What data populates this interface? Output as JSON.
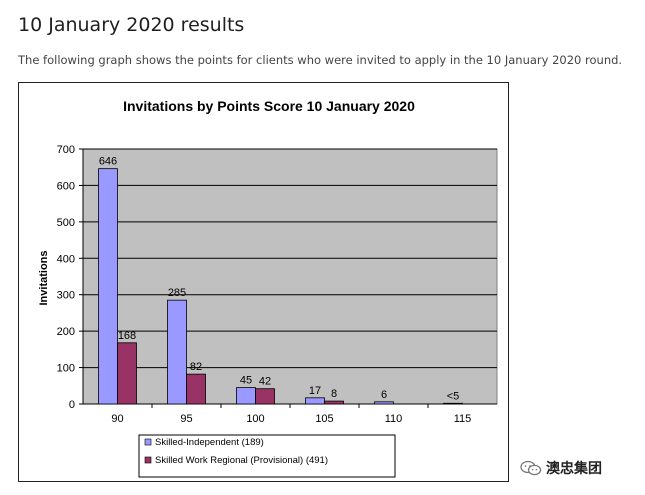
{
  "page": {
    "heading": "10 January 2020 results",
    "intro": "The following graph shows the points for clients who were invited to apply in the 10 January 2020 round."
  },
  "chart_data": {
    "type": "bar",
    "title": "Invitations by Points Score 10 January 2020",
    "xlabel": "",
    "ylabel": "Invitations",
    "ylim": [
      0,
      700
    ],
    "yticks": [
      0,
      100,
      200,
      300,
      400,
      500,
      600,
      700
    ],
    "grid": true,
    "categories": [
      "90",
      "95",
      "100",
      "105",
      "110",
      "115"
    ],
    "series": [
      {
        "name": "Skilled-Independent (189)",
        "color": "#9999ff",
        "values": [
          646,
          285,
          45,
          17,
          6,
          2
        ],
        "labels": [
          "646",
          "285",
          "45",
          "17",
          "6",
          "<5"
        ]
      },
      {
        "name": "Skilled Work Regional (Provisional) (491)",
        "color": "#993366",
        "values": [
          168,
          82,
          42,
          8,
          null,
          null
        ],
        "labels": [
          "168",
          "82",
          "42",
          "8",
          "",
          ""
        ]
      }
    ],
    "legend_position": "bottom",
    "plot_background": "#c0c0c0"
  },
  "watermark": {
    "text": "澳忠集团",
    "icon": "wechat-icon"
  }
}
